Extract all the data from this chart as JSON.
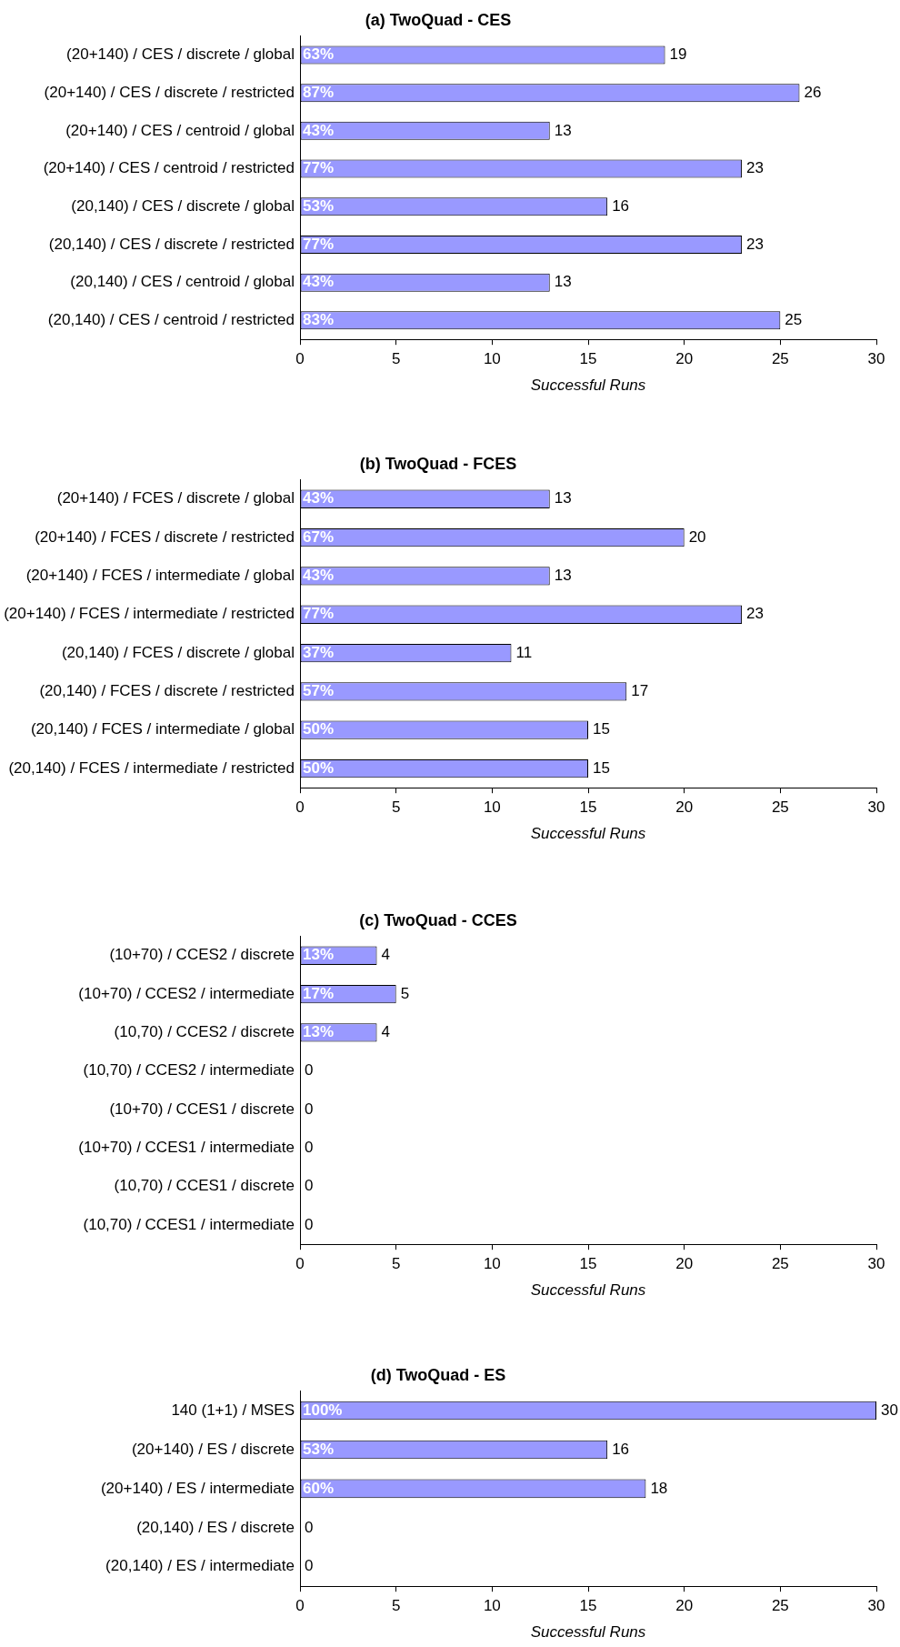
{
  "chart_data": [
    {
      "type": "bar",
      "orientation": "horizontal",
      "title": "(a) TwoQuad - CES",
      "xlabel": "Successful Runs",
      "categories": [
        "(20+140) / CES / discrete / global",
        "(20+140) / CES / discrete / restricted",
        "(20+140) / CES / centroid / global",
        "(20+140) / CES / centroid / restricted",
        "(20,140) / CES / discrete / global",
        "(20,140) / CES / discrete / restricted",
        "(20,140) / CES / centroid / global",
        "(20,140) / CES / centroid / restricted"
      ],
      "values": [
        19,
        26,
        13,
        23,
        16,
        23,
        13,
        25
      ],
      "color": "#9999ff",
      "data_labels": true,
      "xlim": [
        0,
        30
      ],
      "xticks": [
        0,
        5,
        10,
        15,
        20,
        25,
        30
      ],
      "annotations": [
        "63%",
        "87%",
        "43%",
        "77%",
        "53%",
        "77%",
        "43%",
        "83%"
      ]
    },
    {
      "type": "bar",
      "orientation": "horizontal",
      "title": "(b) TwoQuad - FCES",
      "xlabel": "Successful Runs",
      "categories": [
        "(20+140) / FCES / discrete / global",
        "(20+140) / FCES / discrete / restricted",
        "(20+140) / FCES / intermediate / global",
        "(20+140) / FCES / intermediate / restricted",
        "(20,140) / FCES / discrete / global",
        "(20,140) / FCES / discrete / restricted",
        "(20,140) / FCES / intermediate / global",
        "(20,140) / FCES / intermediate / restricted"
      ],
      "values": [
        13,
        20,
        13,
        23,
        11,
        17,
        15,
        15
      ],
      "color": "#9999ff",
      "data_labels": true,
      "xlim": [
        0,
        30
      ],
      "xticks": [
        0,
        5,
        10,
        15,
        20,
        25,
        30
      ],
      "annotations": [
        "43%",
        "67%",
        "43%",
        "77%",
        "37%",
        "57%",
        "50%",
        "50%"
      ]
    },
    {
      "type": "bar",
      "orientation": "horizontal",
      "title": "(c) TwoQuad - CCES",
      "xlabel": "Successful Runs",
      "categories": [
        "(10+70) / CCES2 / discrete",
        "(10+70) / CCES2 / intermediate",
        "(10,70) / CCES2 / discrete",
        "(10,70) / CCES2 / intermediate",
        "(10+70) / CCES1 / discrete",
        "(10+70) / CCES1 / intermediate",
        "(10,70) / CCES1 / discrete",
        "(10,70) / CCES1 / intermediate"
      ],
      "values": [
        4,
        5,
        4,
        0,
        0,
        0,
        0,
        0
      ],
      "color": "#9999ff",
      "data_labels": true,
      "xlim": [
        0,
        30
      ],
      "xticks": [
        0,
        5,
        10,
        15,
        20,
        25,
        30
      ],
      "annotations": [
        "13%",
        "17%",
        "13%"
      ]
    },
    {
      "type": "bar",
      "orientation": "horizontal",
      "title": "(d) TwoQuad - ES",
      "xlabel": "Successful Runs",
      "categories": [
        "140 (1+1) / MSES",
        "(20+140) / ES / discrete",
        "(20+140) / ES / intermediate",
        "(20,140) / ES / discrete",
        "(20,140) / ES / intermediate"
      ],
      "values": [
        30,
        16,
        18,
        0,
        0
      ],
      "color": "#9999ff",
      "data_labels": true,
      "xlim": [
        0,
        30
      ],
      "xticks": [
        0,
        5,
        10,
        15,
        20,
        25,
        30
      ],
      "annotations": [
        "100%",
        "53%",
        "60%"
      ]
    }
  ]
}
